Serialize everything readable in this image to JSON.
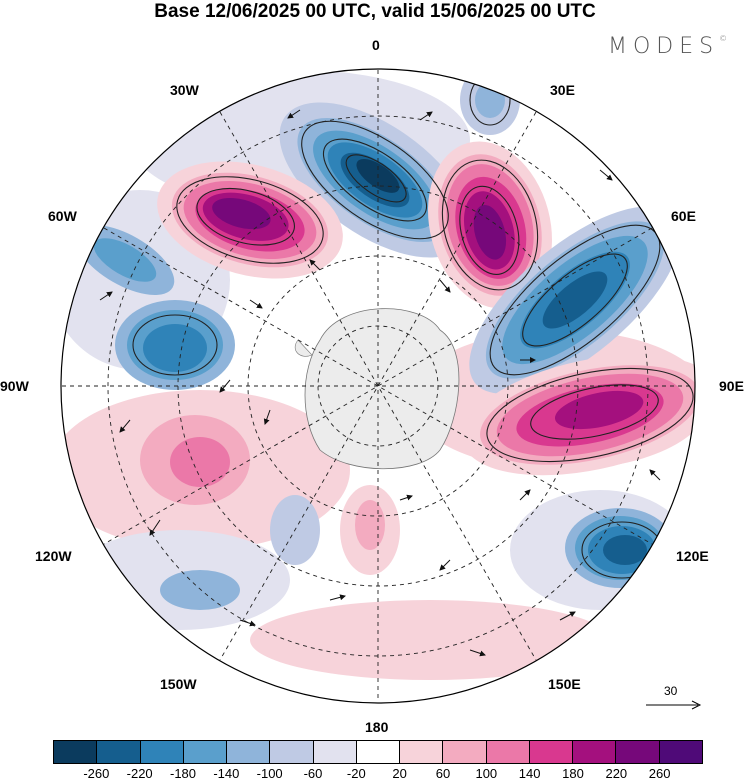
{
  "title": "Base 12/06/2025 00 UTC, valid 15/06/2025 00 UTC",
  "brand": "MODES",
  "brand_mark": "©",
  "longitude_labels": {
    "lon_0": "0",
    "lon_30e": "30E",
    "lon_60e": "60E",
    "lon_90e": "90E",
    "lon_120e": "120E",
    "lon_150e": "150E",
    "lon_180": "180",
    "lon_150w": "150W",
    "lon_120w": "120W",
    "lon_90w": "90W",
    "lon_60w": "60W",
    "lon_30w": "30W"
  },
  "reference_vector": {
    "value": "30"
  },
  "colorbar": {
    "colors": [
      "#0b3b5e",
      "#155e8e",
      "#2f83b8",
      "#5a9fcc",
      "#8fb4da",
      "#bfcae4",
      "#e2e2ef",
      "#ffffff",
      "#f7d3da",
      "#f3abc0",
      "#eb78a8",
      "#d9388f",
      "#a4107e",
      "#76087a",
      "#4f0a78"
    ],
    "tick_labels": [
      "-260",
      "-220",
      "-180",
      "-140",
      "-100",
      "-60",
      "-20",
      "20",
      "60",
      "100",
      "140",
      "180",
      "220",
      "260"
    ]
  }
}
